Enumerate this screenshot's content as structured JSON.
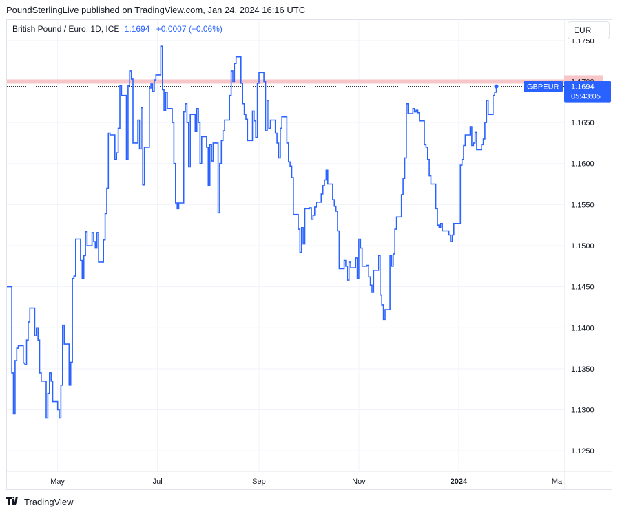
{
  "header": {
    "text": "PoundSterlingLive published on TradingView.com, Jan 24, 2024 16:16 UTC"
  },
  "legend": {
    "title": "British Pound / Euro, 1D, ICE",
    "value": "1.1694",
    "change": "+0.0007 (+0.06%)"
  },
  "currency_button": {
    "label": "EUR"
  },
  "footer": {
    "brand": "TradingView"
  },
  "colors": {
    "line": "#2962ff",
    "resistance": "#f7c6c9",
    "grid": "#f0f3fa"
  },
  "chart_data": {
    "type": "line",
    "symbol": "GBPEUR",
    "ylim": [
      1.1225,
      1.1775
    ],
    "yticks": [
      1.125,
      1.13,
      1.135,
      1.14,
      1.145,
      1.15,
      1.155,
      1.16,
      1.165,
      1.17,
      1.175
    ],
    "ytick_labels": [
      "1.1250",
      "1.1300",
      "1.1350",
      "1.1400",
      "1.1450",
      "1.1500",
      "1.1550",
      "1.1600",
      "1.1650",
      "1.1700",
      "1.1750"
    ],
    "xticks": [
      {
        "label": "May",
        "date": "2023-05-01",
        "bold": false
      },
      {
        "label": "Jul",
        "date": "2023-07-01",
        "bold": false
      },
      {
        "label": "Sep",
        "date": "2023-09-01",
        "bold": false
      },
      {
        "label": "Nov",
        "date": "2023-11-01",
        "bold": false
      },
      {
        "label": "2024",
        "date": "2024-01-01",
        "bold": true
      },
      {
        "label": "Ma",
        "date": "2024-03-01",
        "bold": false
      }
    ],
    "xrange": [
      "2023-03-31",
      "2024-03-05"
    ],
    "resistance_level": {
      "value": 1.17,
      "label": "1.1700"
    },
    "last_price": {
      "value": 1.1694,
      "label": "1.1694",
      "countdown": "05:43:05",
      "symbol_label": "GBPEUR"
    },
    "series": [
      {
        "dates": [
          "2023-03-31",
          "2023-04-03",
          "2023-04-04",
          "2023-04-05",
          "2023-04-06",
          "2023-04-07",
          "2023-04-10",
          "2023-04-11",
          "2023-04-12",
          "2023-04-13",
          "2023-04-14",
          "2023-04-17",
          "2023-04-18",
          "2023-04-19",
          "2023-04-20",
          "2023-04-21",
          "2023-04-24",
          "2023-04-25",
          "2023-04-26",
          "2023-04-27",
          "2023-04-28",
          "2023-05-01",
          "2023-05-02",
          "2023-05-03",
          "2023-05-04",
          "2023-05-05",
          "2023-05-08",
          "2023-05-09",
          "2023-05-10",
          "2023-05-11",
          "2023-05-12",
          "2023-05-15",
          "2023-05-16",
          "2023-05-17",
          "2023-05-18",
          "2023-05-19",
          "2023-05-22",
          "2023-05-23",
          "2023-05-24",
          "2023-05-25",
          "2023-05-26",
          "2023-05-29",
          "2023-05-30",
          "2023-05-31",
          "2023-06-01",
          "2023-06-02",
          "2023-06-05",
          "2023-06-06",
          "2023-06-07",
          "2023-06-08",
          "2023-06-09",
          "2023-06-12",
          "2023-06-13",
          "2023-06-14",
          "2023-06-15",
          "2023-06-16",
          "2023-06-19",
          "2023-06-20",
          "2023-06-21",
          "2023-06-22",
          "2023-06-23",
          "2023-06-26",
          "2023-06-27",
          "2023-06-28",
          "2023-06-29",
          "2023-06-30",
          "2023-07-03",
          "2023-07-04",
          "2023-07-05",
          "2023-07-06",
          "2023-07-07",
          "2023-07-10",
          "2023-07-11",
          "2023-07-12",
          "2023-07-13",
          "2023-07-14",
          "2023-07-17",
          "2023-07-18",
          "2023-07-19",
          "2023-07-20",
          "2023-07-21",
          "2023-07-24",
          "2023-07-25",
          "2023-07-26",
          "2023-07-27",
          "2023-07-28",
          "2023-07-31",
          "2023-08-01",
          "2023-08-02",
          "2023-08-03",
          "2023-08-04",
          "2023-08-07",
          "2023-08-08",
          "2023-08-09",
          "2023-08-10",
          "2023-08-11",
          "2023-08-14",
          "2023-08-15",
          "2023-08-16",
          "2023-08-17",
          "2023-08-18",
          "2023-08-21",
          "2023-08-22",
          "2023-08-23",
          "2023-08-24",
          "2023-08-25",
          "2023-08-28",
          "2023-08-29",
          "2023-08-30",
          "2023-08-31",
          "2023-09-01",
          "2023-09-04",
          "2023-09-05",
          "2023-09-06",
          "2023-09-07",
          "2023-09-08",
          "2023-09-11",
          "2023-09-12",
          "2023-09-13",
          "2023-09-14",
          "2023-09-15",
          "2023-09-18",
          "2023-09-19",
          "2023-09-20",
          "2023-09-21",
          "2023-09-22",
          "2023-09-25",
          "2023-09-26",
          "2023-09-27",
          "2023-09-28",
          "2023-09-29",
          "2023-10-02",
          "2023-10-03",
          "2023-10-04",
          "2023-10-05",
          "2023-10-06",
          "2023-10-09",
          "2023-10-10",
          "2023-10-11",
          "2023-10-12",
          "2023-10-13",
          "2023-10-16",
          "2023-10-17",
          "2023-10-18",
          "2023-10-19",
          "2023-10-20",
          "2023-10-23",
          "2023-10-24",
          "2023-10-25",
          "2023-10-26",
          "2023-10-27",
          "2023-10-30",
          "2023-10-31",
          "2023-11-01",
          "2023-11-02",
          "2023-11-03",
          "2023-11-06",
          "2023-11-07",
          "2023-11-08",
          "2023-11-09",
          "2023-11-10",
          "2023-11-13",
          "2023-11-14",
          "2023-11-15",
          "2023-11-16",
          "2023-11-17",
          "2023-11-20",
          "2023-11-21",
          "2023-11-22",
          "2023-11-23",
          "2023-11-24",
          "2023-11-27",
          "2023-11-28",
          "2023-11-29",
          "2023-11-30",
          "2023-12-01",
          "2023-12-04",
          "2023-12-05",
          "2023-12-06",
          "2023-12-07",
          "2023-12-08",
          "2023-12-11",
          "2023-12-12",
          "2023-12-13",
          "2023-12-14",
          "2023-12-15",
          "2023-12-18",
          "2023-12-19",
          "2023-12-20",
          "2023-12-21",
          "2023-12-22",
          "2023-12-26",
          "2023-12-27",
          "2023-12-28",
          "2023-12-29",
          "2024-01-02",
          "2024-01-03",
          "2024-01-04",
          "2024-01-05",
          "2024-01-08",
          "2024-01-09",
          "2024-01-10",
          "2024-01-11",
          "2024-01-12",
          "2024-01-15",
          "2024-01-16",
          "2024-01-17",
          "2024-01-18",
          "2024-01-19",
          "2024-01-22",
          "2024-01-23",
          "2024-01-24"
        ],
        "values": [
          1.145,
          1.1345,
          1.1295,
          1.136,
          1.1375,
          1.1378,
          1.1357,
          1.1355,
          1.1385,
          1.1407,
          1.1424,
          1.139,
          1.14,
          1.1385,
          1.1345,
          1.1335,
          1.129,
          1.132,
          1.1345,
          1.1335,
          1.131,
          1.13,
          1.129,
          1.133,
          1.1403,
          1.138,
          1.133,
          1.1358,
          1.146,
          1.1463,
          1.1508,
          1.1482,
          1.146,
          1.1488,
          1.1517,
          1.15,
          1.1516,
          1.1505,
          1.1497,
          1.1516,
          1.148,
          1.1507,
          1.1539,
          1.157,
          1.1637,
          1.1635,
          1.1605,
          1.1613,
          1.1643,
          1.1695,
          1.1683,
          1.1605,
          1.1695,
          1.1713,
          1.1703,
          1.1625,
          1.1653,
          1.1618,
          1.1668,
          1.1574,
          1.162,
          1.1692,
          1.1697,
          1.1688,
          1.1702,
          1.1708,
          1.1743,
          1.169,
          1.1665,
          1.1687,
          1.1667,
          1.165,
          1.16,
          1.1552,
          1.1545,
          1.1552,
          1.1663,
          1.1673,
          1.165,
          1.1596,
          1.166,
          1.1639,
          1.1667,
          1.165,
          1.16,
          1.1633,
          1.162,
          1.1573,
          1.1623,
          1.1603,
          1.1625,
          1.154,
          1.16,
          1.1628,
          1.164,
          1.1653,
          1.1683,
          1.1713,
          1.17,
          1.1722,
          1.173,
          1.1698,
          1.1673,
          1.166,
          1.1654,
          1.1628,
          1.1664,
          1.1652,
          1.1632,
          1.1698,
          1.1711,
          1.17,
          1.164,
          1.1677,
          1.1643,
          1.1653,
          1.1637,
          1.1625,
          1.1607,
          1.1643,
          1.1657,
          1.1625,
          1.1602,
          1.1597,
          1.1583,
          1.1538,
          1.152,
          1.1492,
          1.1522,
          1.1502,
          1.1545,
          1.1546,
          1.1532,
          1.1537,
          1.1547,
          1.1553,
          1.1563,
          1.1573,
          1.158,
          1.1592,
          1.1575,
          1.1556,
          1.1548,
          1.1542,
          1.1518,
          1.1472,
          1.1482,
          1.1475,
          1.1458,
          1.148,
          1.1473,
          1.1485,
          1.146,
          1.1508,
          1.1497,
          1.1475,
          1.1476,
          1.1462,
          1.1452,
          1.1443,
          1.147,
          1.1488,
          1.144,
          1.1428,
          1.141,
          1.1422,
          1.1488,
          1.1475,
          1.149,
          1.152,
          1.1535,
          1.1562,
          1.1582,
          1.1607,
          1.1673,
          1.1661,
          1.1667,
          1.1663,
          1.1665,
          1.1662,
          1.1652,
          1.1623,
          1.162,
          1.1605,
          1.1585,
          1.1575,
          1.1545,
          1.1525,
          1.1522,
          1.1527,
          1.1518,
          1.1513,
          1.1505,
          1.1513,
          1.1527,
          1.1598,
          1.1605,
          1.1622,
          1.1635,
          1.1645,
          1.1622,
          1.1625,
          1.1638,
          1.1617,
          1.1623,
          1.163,
          1.165,
          1.1677,
          1.166,
          1.1683,
          1.1687,
          1.1694
        ]
      }
    ]
  }
}
